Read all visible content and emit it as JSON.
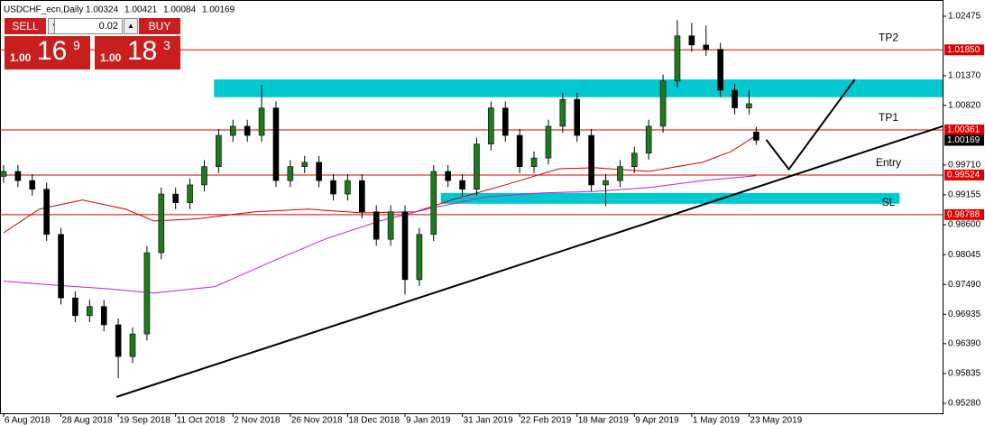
{
  "chart_data": {
    "type": "candlestick",
    "symbol": "USDCHF_ecn,Daily",
    "x": [
      0,
      4,
      8,
      12,
      16,
      20,
      24,
      28,
      32,
      36,
      40,
      44,
      48,
      52,
      56,
      60,
      64,
      68,
      72,
      76,
      80,
      84,
      88,
      92,
      96,
      100,
      104,
      108,
      112,
      116,
      120,
      124,
      128,
      132,
      136,
      140,
      144,
      148,
      152,
      156,
      160,
      164,
      168,
      172,
      176,
      180,
      184,
      188,
      192,
      196,
      200,
      204,
      208,
      210
    ],
    "open": [
      0.995,
      0.9959,
      0.9942,
      0.9926,
      0.9842,
      0.9724,
      0.9691,
      0.9708,
      0.9674,
      0.9615,
      0.9657,
      0.9808,
      0.9917,
      0.9901,
      0.9934,
      0.9968,
      1.0026,
      1.0043,
      1.0026,
      1.0077,
      0.9942,
      0.9968,
      0.9976,
      0.9942,
      0.9917,
      0.9942,
      0.9884,
      0.9833,
      0.9884,
      0.9758,
      0.9842,
      0.9959,
      0.9942,
      0.9926,
      1.001,
      1.0077,
      1.0026,
      0.9968,
      0.9984,
      1.0043,
      1.0093,
      1.0026,
      0.9934,
      0.9942,
      0.9968,
      0.9993,
      1.0043,
      1.0127,
      1.0211,
      1.0194,
      1.0186,
      1.011,
      1.0077,
      1.00324
    ],
    "high": [
      0.9971,
      0.9971,
      0.9954,
      0.9938,
      0.9854,
      0.9736,
      0.972,
      0.972,
      0.9686,
      0.9669,
      0.982,
      0.9929,
      0.9929,
      0.9946,
      0.998,
      1.0038,
      1.0055,
      1.0055,
      1.012,
      1.0089,
      0.998,
      0.9988,
      0.9988,
      0.9954,
      0.9954,
      0.9954,
      0.9896,
      0.9896,
      0.9896,
      0.9854,
      0.9971,
      0.9971,
      0.9954,
      1.0022,
      1.0089,
      1.0089,
      1.0038,
      0.9996,
      1.0055,
      1.0105,
      1.0105,
      1.0038,
      0.9954,
      0.998,
      1.0005,
      1.0055,
      1.0139,
      1.024,
      1.0235,
      1.023,
      1.0198,
      1.0122,
      1.011,
      1.00421
    ],
    "low": [
      0.9938,
      0.993,
      0.9914,
      0.983,
      0.9712,
      0.9679,
      0.9679,
      0.9662,
      0.9575,
      0.9603,
      0.9645,
      0.9796,
      0.9889,
      0.9889,
      0.9922,
      0.9956,
      1.0014,
      1.0014,
      1.0014,
      0.993,
      0.993,
      0.9956,
      0.993,
      0.9905,
      0.9905,
      0.9872,
      0.9821,
      0.9821,
      0.973,
      0.9746,
      0.983,
      0.993,
      0.9914,
      0.9914,
      0.9998,
      1.0014,
      0.9956,
      0.9956,
      0.9972,
      1.0031,
      1.0014,
      0.9922,
      0.9895,
      0.993,
      0.9956,
      0.9981,
      1.0031,
      1.0115,
      1.0182,
      1.0174,
      1.0098,
      1.0065,
      1.0065,
      1.00084
    ],
    "close": [
      0.9959,
      0.9942,
      0.9926,
      0.9842,
      0.9724,
      0.9691,
      0.9708,
      0.9674,
      0.9615,
      0.9657,
      0.9808,
      0.9917,
      0.9901,
      0.9934,
      0.9968,
      1.0026,
      1.0043,
      1.0026,
      1.0077,
      0.9942,
      0.9968,
      0.9976,
      0.9942,
      0.9917,
      0.9942,
      0.9884,
      0.9833,
      0.9884,
      0.9758,
      0.9842,
      0.9959,
      0.9942,
      0.9926,
      1.001,
      1.0077,
      1.0026,
      0.9968,
      0.9984,
      1.0043,
      1.0093,
      1.0026,
      0.9934,
      0.9942,
      0.9968,
      0.9993,
      1.0043,
      1.0127,
      1.0211,
      1.0194,
      1.0186,
      1.011,
      1.0077,
      1.0085,
      1.00169
    ],
    "up_color": "#1f7a1f",
    "down_color": "#000000",
    "moving_averages": [
      {
        "color": "#d00000",
        "x": [
          0,
          10,
          22,
          34,
          42,
          54,
          70,
          85,
          100,
          115,
          125,
          140,
          155,
          165,
          180,
          195,
          203,
          210
        ],
        "values": [
          0.9845,
          0.9889,
          0.9906,
          0.9889,
          0.9867,
          0.9871,
          0.9884,
          0.9889,
          0.9882,
          0.9884,
          0.9906,
          0.9934,
          0.9964,
          0.9966,
          0.9959,
          0.9976,
          0.9996,
          1.0026
        ]
      },
      {
        "color": "#c020d0",
        "x": [
          0,
          14,
          29,
          42,
          59,
          75,
          90,
          105,
          120,
          135,
          150,
          165,
          180,
          195,
          210
        ],
        "values": [
          0.9755,
          0.9748,
          0.9741,
          0.9733,
          0.9745,
          0.9792,
          0.9834,
          0.9867,
          0.9892,
          0.9912,
          0.9919,
          0.9922,
          0.9929,
          0.9942,
          0.9951
        ]
      }
    ],
    "zones": [
      {
        "x": [
          58.7,
          262
        ],
        "range": [
          1.0097,
          1.013
        ]
      },
      {
        "x": [
          122,
          250
        ],
        "range": [
          0.9899,
          0.9919
        ]
      }
    ],
    "zone_color": "#00c8d0",
    "trendline": {
      "x": [
        31.5,
        262
      ],
      "values": [
        0.954,
        1.0043
      ]
    },
    "projection": {
      "x": [
        212.8,
        219.1,
        237.5
      ],
      "values": [
        1.0018,
        0.9963,
        1.013
      ]
    },
    "levels": [
      {
        "value": 1.0185,
        "label": "1.01850",
        "name": "TP2"
      },
      {
        "value": 1.00361,
        "label": "1.00361",
        "name": "TP1"
      },
      {
        "value": 0.99524,
        "label": "0.99524",
        "name": "Entry"
      },
      {
        "value": 0.98788,
        "label": "0.98788",
        "name": "SL"
      }
    ],
    "level_color": "#e00000",
    "xlim": [
      -1,
      262
    ],
    "ylim": [
      0.95096,
      1.02743
    ],
    "yticks": [
      1.02475,
      {
        "value": 1.0137,
        "label": "1.01370"
      },
      {
        "value": 1.0082,
        "label": "1.00820"
      },
      {
        "value": 0.9971,
        "label": "0.99710"
      },
      0.99155,
      {
        "value": 0.986,
        "label": "0.98600"
      },
      0.98045,
      {
        "value": 0.9749,
        "label": "0.97490"
      },
      0.96935,
      {
        "value": 0.9639,
        "label": "0.96390"
      },
      0.95835,
      {
        "value": 0.9528,
        "label": "0.95280"
      }
    ],
    "xticks": [
      {
        "value": 0,
        "label": "6 Aug 2018"
      },
      {
        "value": 16,
        "label": "28 Aug 2018"
      },
      {
        "value": 32,
        "label": "19 Sep 2018"
      },
      {
        "value": 48,
        "label": "11 Oct 2018"
      },
      {
        "value": 64,
        "label": "2 Nov 2018"
      },
      {
        "value": 80,
        "label": "26 Nov 2018"
      },
      {
        "value": 96,
        "label": "18 Dec 2018"
      },
      {
        "value": 112,
        "label": "9 Jan 2019"
      },
      {
        "value": 128,
        "label": "31 Jan 2019"
      },
      {
        "value": 144,
        "label": "22 Feb 2019"
      },
      {
        "value": 160,
        "label": "18 Mar 2019"
      },
      {
        "value": 176,
        "label": "9 Apr 2019"
      },
      {
        "value": 192,
        "label": "1 May 2019"
      },
      {
        "value": 208,
        "label": "23 May 2019"
      }
    ],
    "trade_panel": {
      "sell": "SELL",
      "buy": "BUY",
      "lot": "0.02",
      "bid": {
        "big": "1.00",
        "mid": "16",
        "small": "9"
      },
      "ask": {
        "big": "1.00",
        "mid": "18",
        "small": "3"
      }
    }
  }
}
